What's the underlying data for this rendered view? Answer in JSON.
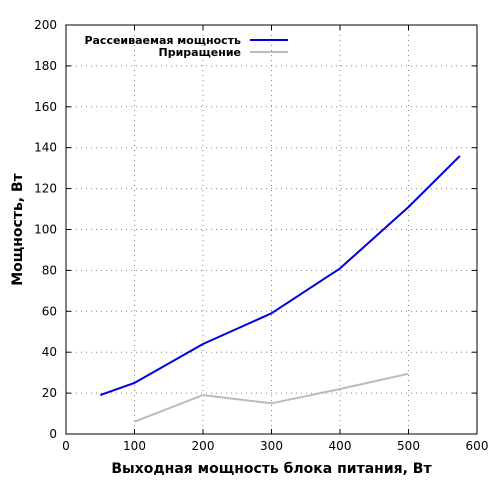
{
  "chart_data": {
    "type": "line",
    "title": "",
    "xlabel": "Выходная мощность блока питания, Вт",
    "ylabel": "Мощность, Вт",
    "xlim": [
      0,
      600
    ],
    "ylim": [
      0,
      200
    ],
    "xticks": [
      0,
      100,
      200,
      300,
      400,
      500,
      600
    ],
    "yticks": [
      0,
      20,
      40,
      60,
      80,
      100,
      120,
      140,
      160,
      180,
      200
    ],
    "grid": true,
    "grid_style": "dotted",
    "legend_position": "top-left",
    "series": [
      {
        "name": "Рассеиваемая мощность",
        "color": "#0000dd",
        "x": [
          50,
          100,
          200,
          300,
          400,
          500,
          575
        ],
        "y": [
          19,
          25,
          44,
          59,
          81,
          111,
          136
        ]
      },
      {
        "name": "Приращение",
        "color": "#bbbbbb",
        "x": [
          100,
          200,
          300,
          400,
          500
        ],
        "y": [
          6,
          19,
          15,
          22,
          29.5
        ]
      }
    ]
  }
}
